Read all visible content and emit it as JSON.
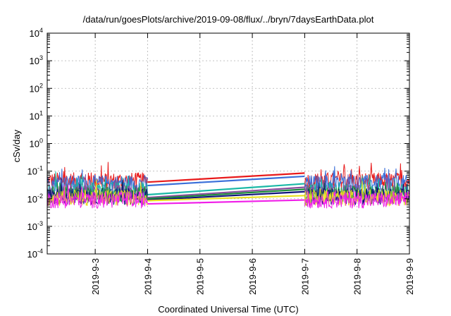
{
  "chart_data": {
    "type": "line",
    "title": "/data/run/goesPlots/archive/2019-09-08/flux/../bryn/7daysEarthData.plot",
    "xlabel": "Coordinated Universal Time (UTC)",
    "ylabel": "cSv/day",
    "y_scale": "log",
    "ylim": [
      0.0001,
      10000
    ],
    "xlim": [
      "2019-09-02T02:00",
      "2019-09-09T00:00"
    ],
    "y_ticks": [
      {
        "value": 0.0001,
        "base": "10",
        "exp": "-4"
      },
      {
        "value": 0.001,
        "base": "10",
        "exp": "-3"
      },
      {
        "value": 0.01,
        "base": "10",
        "exp": "-2"
      },
      {
        "value": 0.1,
        "base": "10",
        "exp": "-1"
      },
      {
        "value": 1,
        "base": "10",
        "exp": "0"
      },
      {
        "value": 10,
        "base": "10",
        "exp": "1"
      },
      {
        "value": 100,
        "base": "10",
        "exp": "2"
      },
      {
        "value": 1000,
        "base": "10",
        "exp": "3"
      },
      {
        "value": 10000,
        "base": "10",
        "exp": "4"
      }
    ],
    "x_ticks": [
      {
        "date": "2019-09-03",
        "label": "2019-9-3"
      },
      {
        "date": "2019-09-04",
        "label": "2019-9-4"
      },
      {
        "date": "2019-09-05",
        "label": "2019-9-5"
      },
      {
        "date": "2019-09-06",
        "label": "2019-9-6"
      },
      {
        "date": "2019-09-07",
        "label": "2019-9-7"
      },
      {
        "date": "2019-09-08",
        "label": "2019-9-8"
      },
      {
        "date": "2019-09-09",
        "label": "2019-9-9"
      }
    ],
    "grid": true,
    "legend": false,
    "data_segments": [
      {
        "start": "2019-09-02T02:00",
        "end": "2019-09-04T00:00"
      },
      {
        "start": "2019-09-07T00:00",
        "end": "2019-09-09T00:00"
      }
    ],
    "series": [
      {
        "color": "#e8191a",
        "values": [
          {
            "x": "2019-09-04T00:00",
            "y": 0.04
          },
          {
            "x": "2019-09-07T00:00",
            "y": 0.085
          }
        ],
        "noise_level": 0.045
      },
      {
        "color": "#3a6fd9",
        "values": [
          {
            "x": "2019-09-04T00:00",
            "y": 0.03
          },
          {
            "x": "2019-09-07T00:00",
            "y": 0.065
          }
        ],
        "noise_level": 0.036
      },
      {
        "color": "#1ab8a6",
        "values": [
          {
            "x": "2019-09-04T00:00",
            "y": 0.014
          },
          {
            "x": "2019-09-07T00:00",
            "y": 0.035
          }
        ],
        "noise_level": 0.02
      },
      {
        "color": "#8a4f9e",
        "values": [
          {
            "x": "2019-09-04T00:00",
            "y": 0.011
          },
          {
            "x": "2019-09-07T00:00",
            "y": 0.026
          }
        ],
        "noise_level": 0.016
      },
      {
        "color": "#1b8a3a",
        "values": [
          {
            "x": "2019-09-04T00:00",
            "y": 0.01
          },
          {
            "x": "2019-09-07T00:00",
            "y": 0.022
          }
        ],
        "noise_level": 0.014
      },
      {
        "color": "#10137a",
        "values": [
          {
            "x": "2019-09-04T00:00",
            "y": 0.009
          },
          {
            "x": "2019-09-07T00:00",
            "y": 0.018
          }
        ],
        "noise_level": 0.012
      },
      {
        "color": "#e8e020",
        "values": [
          {
            "x": "2019-09-04T00:00",
            "y": 0.0085
          },
          {
            "x": "2019-09-07T00:00",
            "y": 0.013
          }
        ],
        "noise_level": 0.011
      },
      {
        "color": "#f020e8",
        "values": [
          {
            "x": "2019-09-04T00:00",
            "y": 0.0065
          },
          {
            "x": "2019-09-07T00:00",
            "y": 0.009
          }
        ],
        "noise_level": 0.009
      }
    ]
  }
}
